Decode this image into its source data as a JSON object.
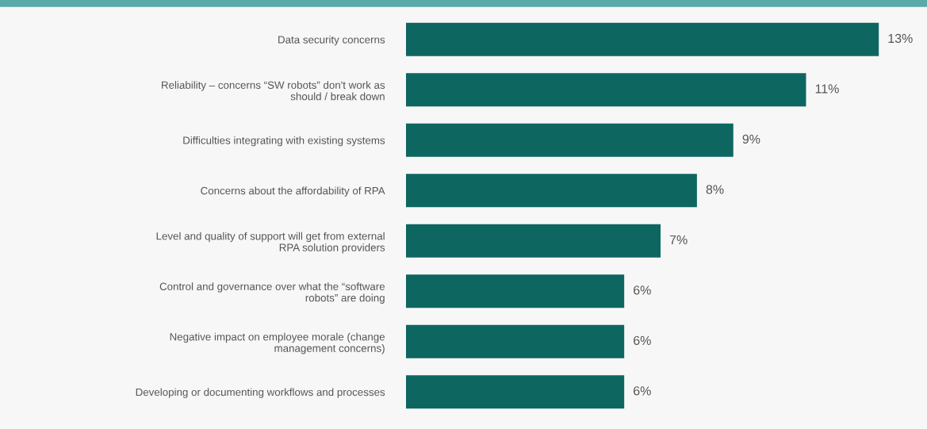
{
  "chart_data": {
    "type": "bar",
    "orientation": "horizontal",
    "categories": [
      "Data security concerns",
      "Reliability – concerns “SW robots” don't work as\nshould / break down",
      "Difficulties integrating with existing systems",
      "Concerns about the affordability of RPA",
      "Level and quality of support will get from external\nRPA solution providers",
      "Control and governance over what the “software\nrobots” are doing",
      "Negative impact on employee morale (change\nmanagement concerns)",
      "Developing or documenting workflows and processes"
    ],
    "values": [
      13,
      11,
      9,
      8,
      7,
      6,
      6,
      6
    ],
    "value_labels": [
      "13%",
      "11%",
      "9%",
      "8%",
      "7%",
      "6%",
      "6%",
      "6%"
    ],
    "color": "#0e6661",
    "grid": false,
    "legend": false
  }
}
